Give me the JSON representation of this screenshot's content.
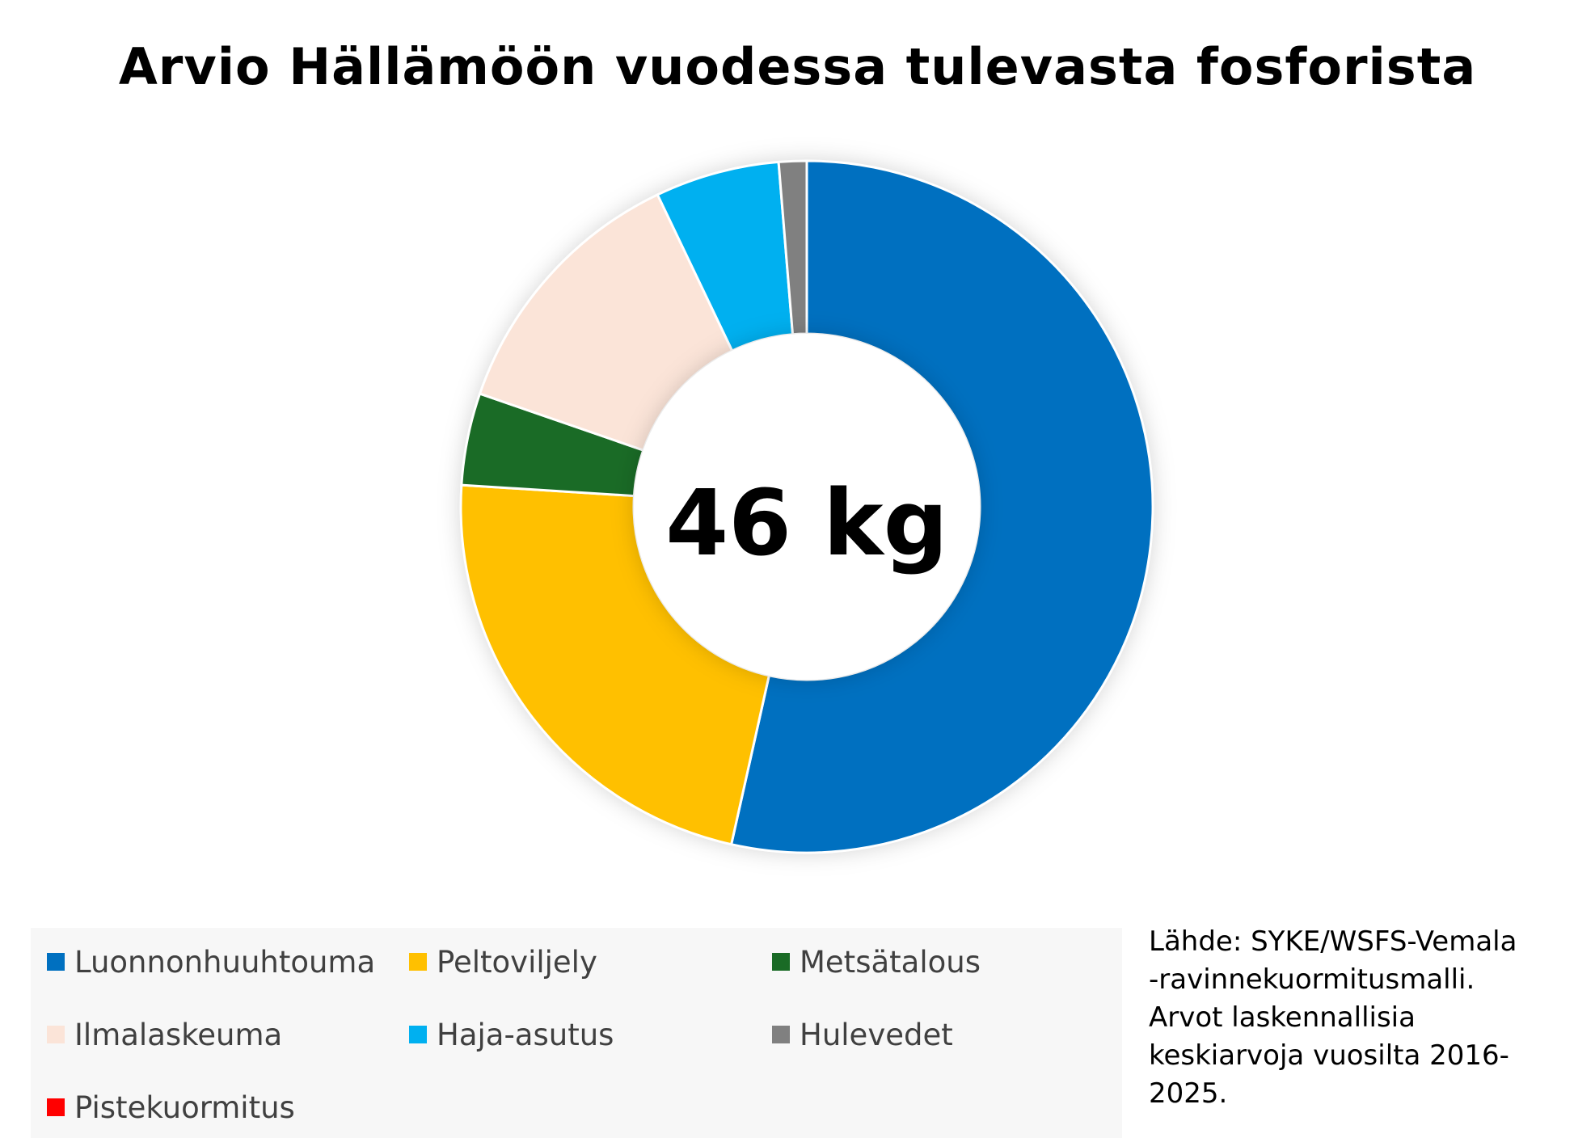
{
  "chart_data": {
    "type": "pie",
    "title": "Arvio Hällämöön vuodessa tulevasta fosforista",
    "center_label": "46 kg",
    "categories": [
      "Luonnonhuuhtouma",
      "Peltoviljely",
      "Metsätalous",
      "Ilmalaskeuma",
      "Haja-asutus",
      "Hulevedet",
      "Pistekuormitus"
    ],
    "values": [
      53.5,
      22.5,
      4.3,
      12.6,
      5.8,
      1.3,
      0
    ],
    "colors": [
      "#0070C0",
      "#FFC000",
      "#1A6B26",
      "#FBE4D8",
      "#00B0F0",
      "#808080",
      "#FF0000"
    ],
    "legend_placement": "bottom",
    "source": [
      "Lähde: SYKE/WSFS-Vemala",
      "-ravinnekuormitusmalli.",
      "Arvot laskennallisia",
      "keskiarvoja vuosilta 2016-",
      "2025."
    ]
  }
}
